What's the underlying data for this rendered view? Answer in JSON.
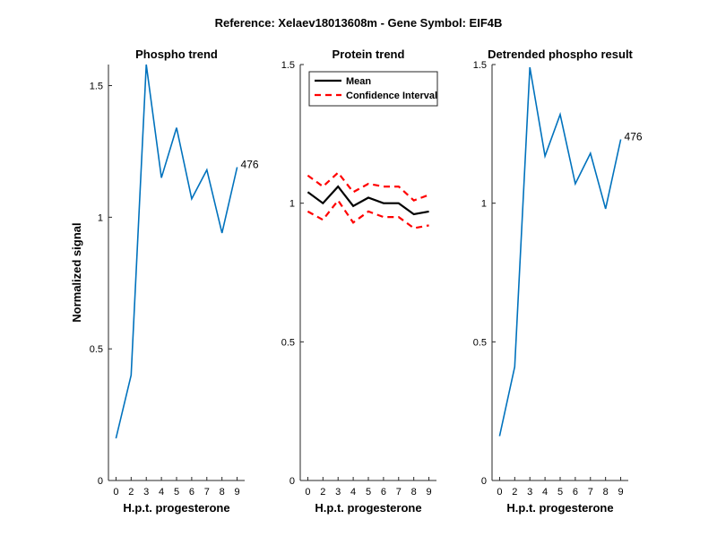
{
  "figure": {
    "suptitle": "Reference:  Xelaev18013608m - Gene Symbol:  EIF4B"
  },
  "colors": {
    "series": "#0072BD",
    "mean": "#000000",
    "ci": "#FF0000",
    "axis": "#262626"
  },
  "chart_data": [
    {
      "type": "line",
      "title": "Phospho trend",
      "xlabel": "H.p.t. progesterone",
      "ylabel": "Normalized signal",
      "categories": [
        "0",
        "2",
        "3",
        "4",
        "5",
        "6",
        "7",
        "8",
        "9"
      ],
      "ylim": [
        0,
        1.58
      ],
      "yticks": [
        0,
        0.5,
        1,
        1.5
      ],
      "ytick_labels": [
        "0",
        "0.5",
        "1",
        "1.5"
      ],
      "grid": false,
      "series": [
        {
          "name": "",
          "values": [
            0.16,
            0.4,
            1.58,
            1.15,
            1.34,
            1.07,
            1.18,
            0.94,
            1.19
          ]
        }
      ],
      "annotation": {
        "text": "476",
        "index": 8
      }
    },
    {
      "type": "line",
      "title": "Protein trend",
      "xlabel": "H.p.t. progesterone",
      "ylabel": "",
      "categories": [
        "0",
        "2",
        "3",
        "4",
        "5",
        "6",
        "7",
        "8",
        "9"
      ],
      "ylim": [
        0,
        1.5
      ],
      "yticks": [
        0,
        0.5,
        1,
        1.5
      ],
      "ytick_labels": [
        "0",
        "0.5",
        "1",
        "1.5"
      ],
      "grid": false,
      "legend_position": "top-left",
      "series": [
        {
          "name": "Mean",
          "values": [
            1.04,
            1.0,
            1.06,
            0.99,
            1.02,
            1.0,
            1.0,
            0.96,
            0.97
          ],
          "style": "solid"
        },
        {
          "name": "Confidence Interval",
          "values": [
            1.1,
            1.06,
            1.11,
            1.04,
            1.07,
            1.06,
            1.06,
            1.01,
            1.03
          ],
          "style": "dashed"
        },
        {
          "name": "",
          "values": [
            0.97,
            0.94,
            1.01,
            0.93,
            0.97,
            0.95,
            0.95,
            0.91,
            0.92
          ],
          "style": "dashed"
        }
      ]
    },
    {
      "type": "line",
      "title": "Detrended phospho result",
      "xlabel": "H.p.t. progesterone",
      "ylabel": "",
      "categories": [
        "0",
        "2",
        "3",
        "4",
        "5",
        "6",
        "7",
        "8",
        "9"
      ],
      "ylim": [
        0,
        1.5
      ],
      "yticks": [
        0,
        0.5,
        1,
        1.5
      ],
      "ytick_labels": [
        "0",
        "0.5",
        "1",
        "1.5"
      ],
      "grid": false,
      "series": [
        {
          "name": "",
          "values": [
            0.16,
            0.41,
            1.49,
            1.17,
            1.32,
            1.07,
            1.18,
            0.98,
            1.23
          ]
        }
      ],
      "annotation": {
        "text": "476",
        "index": 8
      }
    }
  ]
}
